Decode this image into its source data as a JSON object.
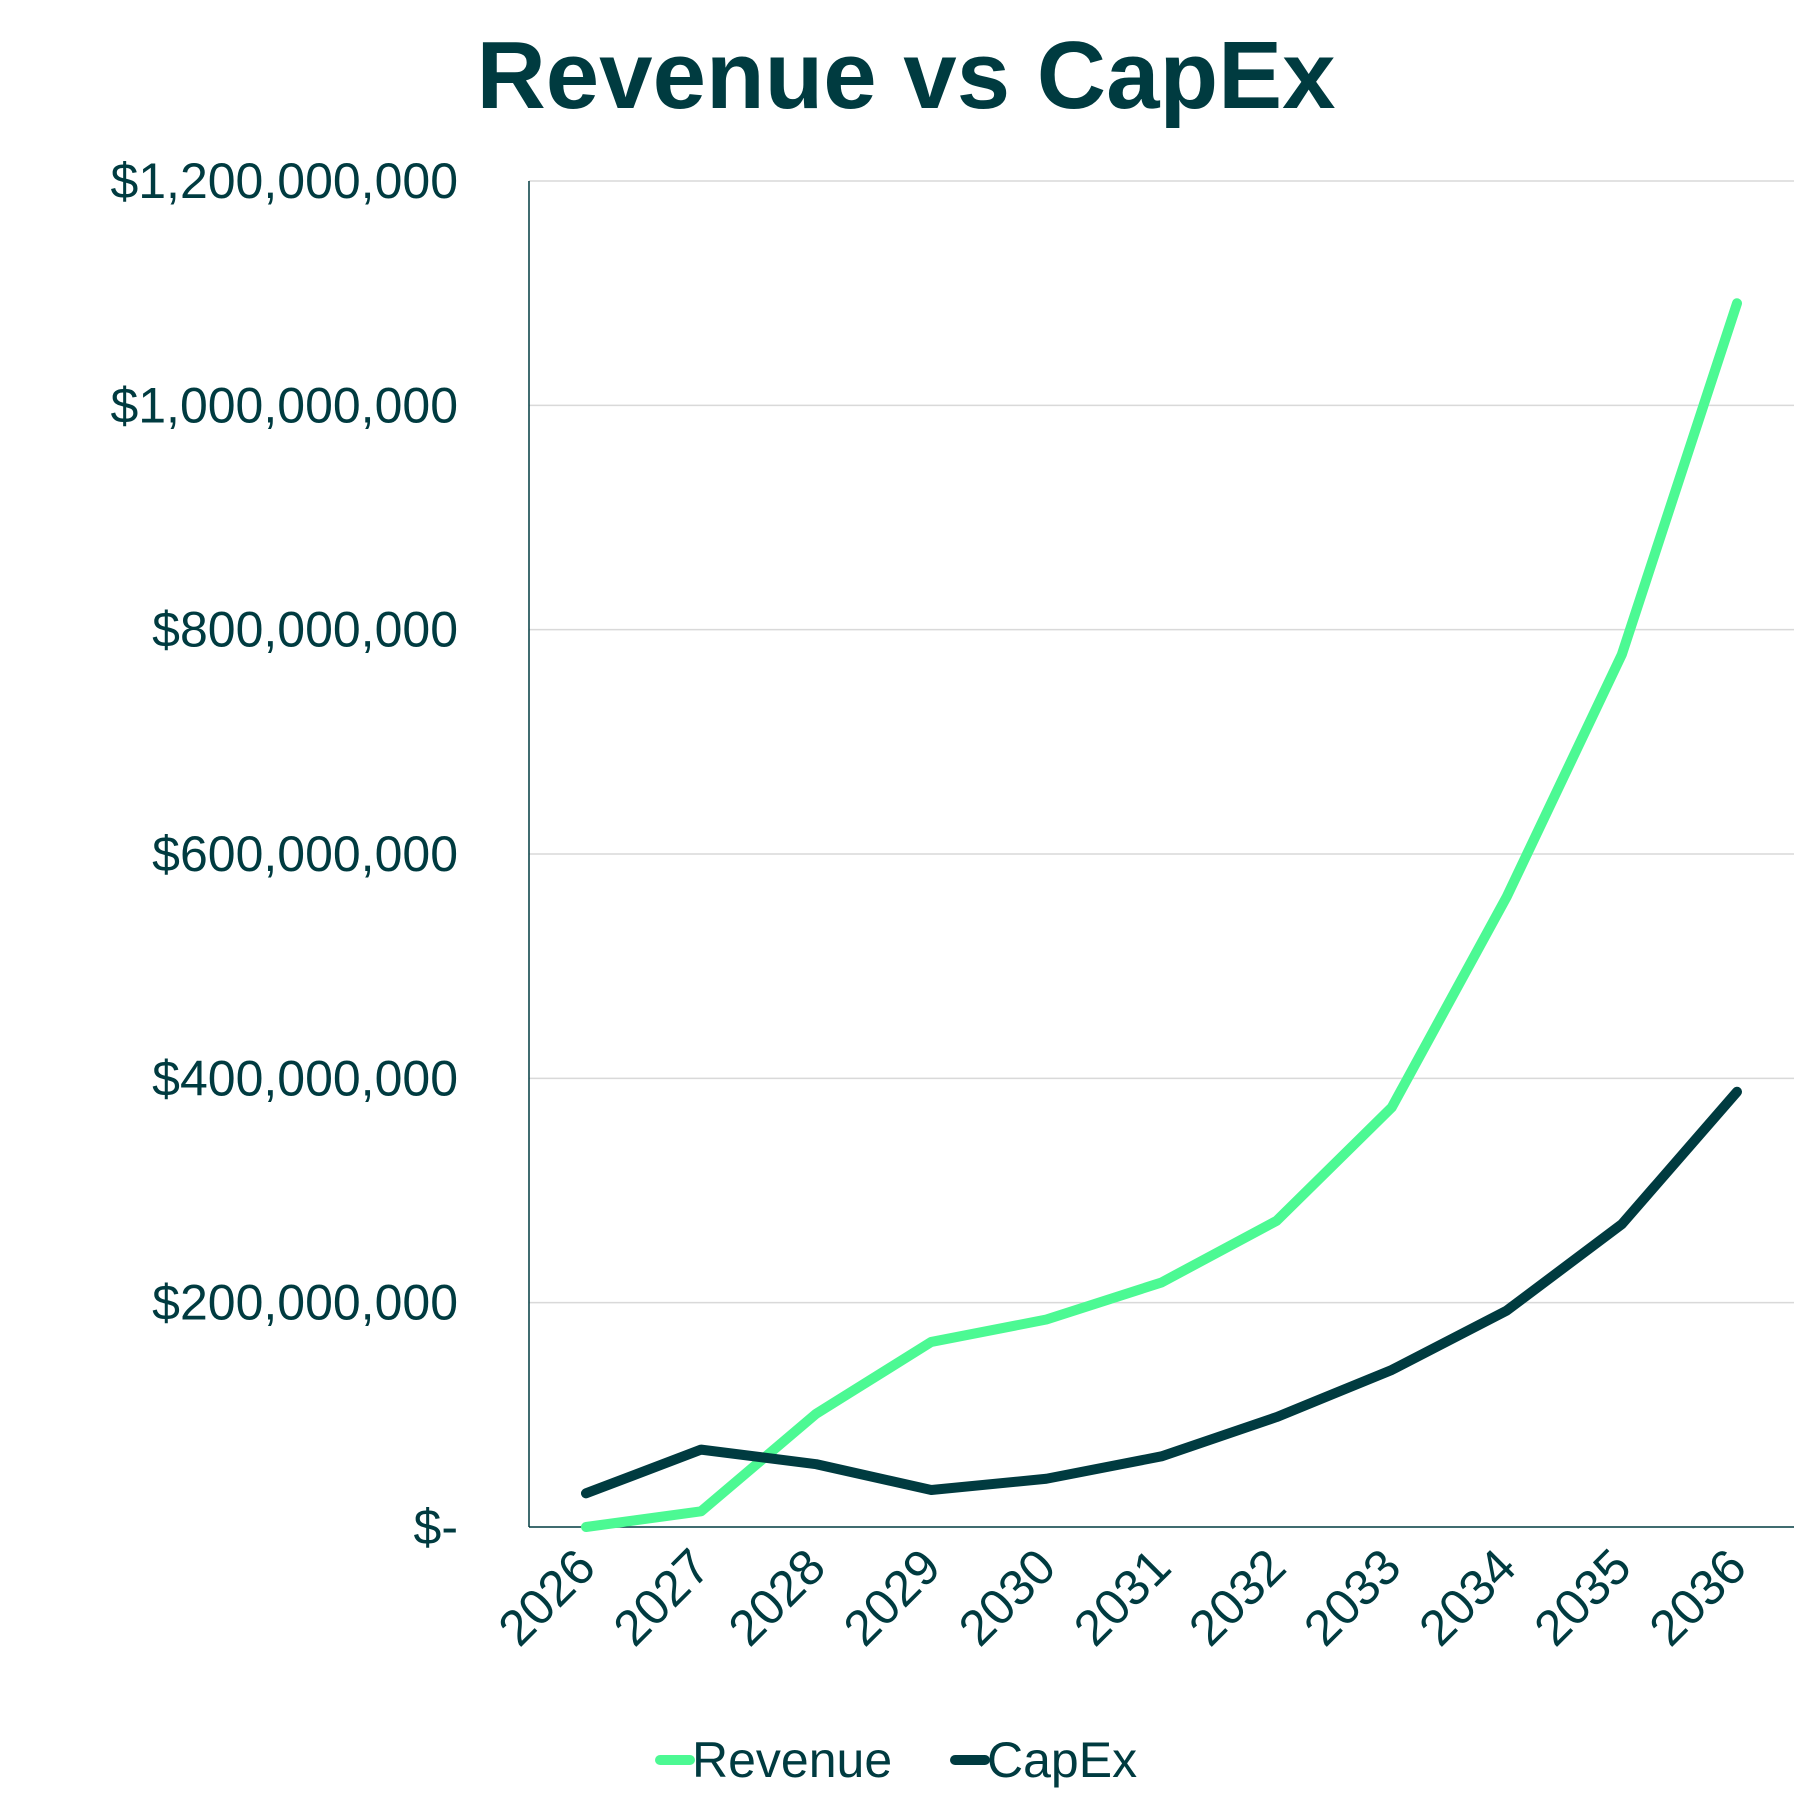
{
  "chart_data": {
    "type": "line",
    "title": "Revenue vs CapEx",
    "xlabel": "",
    "ylabel": "",
    "categories": [
      "2026",
      "2027",
      "2028",
      "2029",
      "2030",
      "2031",
      "2032",
      "2033",
      "2034",
      "2035",
      "2036"
    ],
    "series": [
      {
        "name": "Revenue",
        "color": "#4CF993",
        "values": [
          0,
          14000000,
          101000000,
          165000000,
          185000000,
          218000000,
          273000000,
          374000000,
          562000000,
          778000000,
          1091000000
        ]
      },
      {
        "name": "CapEx",
        "color": "#003B40",
        "values": [
          30000000,
          69000000,
          56000000,
          33000000,
          43000000,
          63000000,
          98000000,
          140000000,
          193000000,
          270000000,
          388000000
        ]
      }
    ],
    "ylim": [
      0,
      1200000000
    ],
    "yticks": [
      0,
      200000000,
      400000000,
      600000000,
      800000000,
      1000000000,
      1200000000
    ],
    "ytick_labels": [
      "$-",
      "$200,000,000",
      "$400,000,000",
      "$600,000,000",
      "$800,000,000",
      "$1,000,000,000",
      "$1,200,000,000"
    ],
    "grid": true,
    "legend": "bottom",
    "text_color": "#003B40"
  }
}
